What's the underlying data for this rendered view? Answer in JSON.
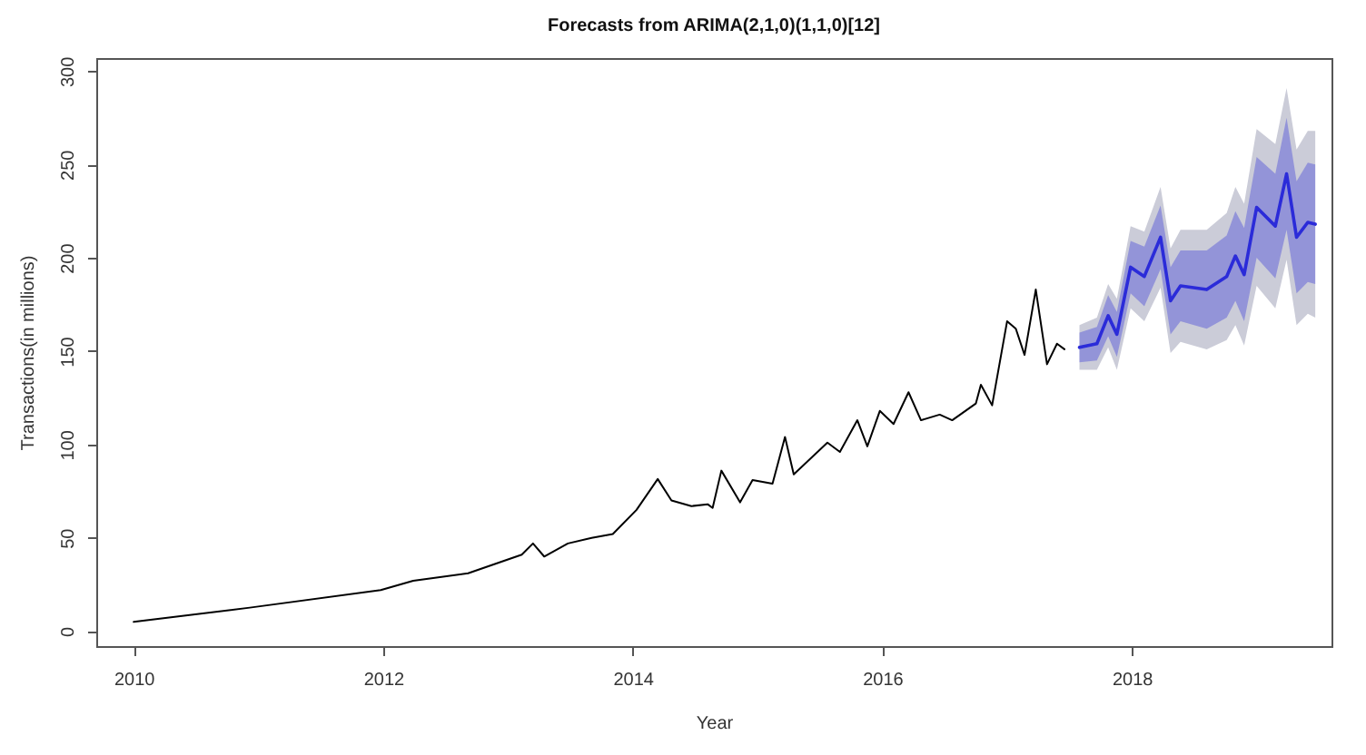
{
  "chart_data": {
    "type": "line",
    "title": "Forecasts from ARIMA(2,1,0)(1,1,0)[12]",
    "xlabel": "Year",
    "ylabel": "Transactions(in millions)",
    "xlim": [
      2009.7,
      2019.6
    ],
    "xticks": [
      2010,
      2012,
      2014,
      2016,
      2018
    ],
    "ylim": [
      -8,
      307
    ],
    "yticks": [
      0,
      50,
      100,
      150,
      200,
      250,
      300
    ],
    "series": [
      {
        "color": "#000000",
        "x": [
          2010.0,
          2010.93,
          2011.98,
          2012.24,
          2012.68,
          2013.11,
          2013.2,
          2013.29,
          2013.48,
          2013.67,
          2013.84,
          2014.03,
          2014.2,
          2014.31,
          2014.47,
          2014.6,
          2014.64,
          2014.71,
          2014.86,
          2014.96,
          2015.12,
          2015.22,
          2015.29,
          2015.56,
          2015.66,
          2015.8,
          2015.88,
          2015.98,
          2016.09,
          2016.21,
          2016.31,
          2016.46,
          2016.56,
          2016.75,
          2016.79,
          2016.88,
          2017.0,
          2017.07,
          2017.14,
          2017.23,
          2017.32,
          2017.4,
          2017.46
        ],
        "values": [
          5,
          12.6,
          22,
          27,
          31,
          41,
          47,
          40,
          47,
          50,
          52,
          65,
          81.5,
          70,
          67,
          68,
          66,
          86,
          69,
          81,
          79,
          104,
          84,
          101,
          96,
          113,
          99,
          118,
          111,
          128,
          113,
          116,
          113,
          122,
          132,
          121,
          166,
          162,
          148,
          183,
          143,
          154,
          151
        ]
      },
      {
        "color": "#cbccd8",
        "x": [
          2017.58,
          2017.72,
          2017.81,
          2017.88,
          2017.99,
          2018.1,
          2018.23,
          2018.31,
          2018.39,
          2018.6,
          2018.76,
          2018.83,
          2018.9,
          2019.0,
          2019.15,
          2019.24,
          2019.32,
          2019.41,
          2019.47
        ],
        "values": [
          null,
          null,
          null,
          null,
          null,
          null,
          null,
          null,
          null,
          null,
          null,
          null,
          null,
          null,
          null,
          null,
          null,
          null,
          null
        ],
        "lower": [
          140,
          140,
          152,
          140,
          173,
          166,
          184,
          149,
          155,
          151,
          156,
          164,
          153,
          185,
          173,
          199,
          164,
          170,
          168
        ],
        "upper": [
          164,
          168,
          186,
          178,
          217,
          214,
          238,
          205,
          215,
          215,
          224,
          238,
          229,
          269,
          261,
          291,
          258,
          268,
          268
        ]
      },
      {
        "color": "#2b2bd9",
        "x": [
          2017.58,
          2017.72,
          2017.81,
          2017.88,
          2017.99,
          2018.1,
          2018.23,
          2018.31,
          2018.39,
          2018.6,
          2018.76,
          2018.83,
          2018.9,
          2019.0,
          2019.15,
          2019.24,
          2019.32,
          2019.41,
          2019.47
        ],
        "values": [
          152,
          154,
          169,
          159,
          195,
          190,
          211,
          177,
          185,
          183,
          190,
          201,
          191,
          227,
          217,
          245,
          211,
          219,
          218
        ],
        "lower": [
          144,
          145,
          158,
          147,
          181,
          174,
          194,
          159,
          166,
          162,
          168,
          177,
          166,
          200,
          189,
          215,
          181,
          187,
          186
        ],
        "upper": [
          160,
          163,
          180,
          171,
          209,
          206,
          228,
          195,
          204,
          204,
          212,
          225,
          216,
          254,
          245,
          275,
          241,
          251,
          250
        ]
      }
    ]
  }
}
